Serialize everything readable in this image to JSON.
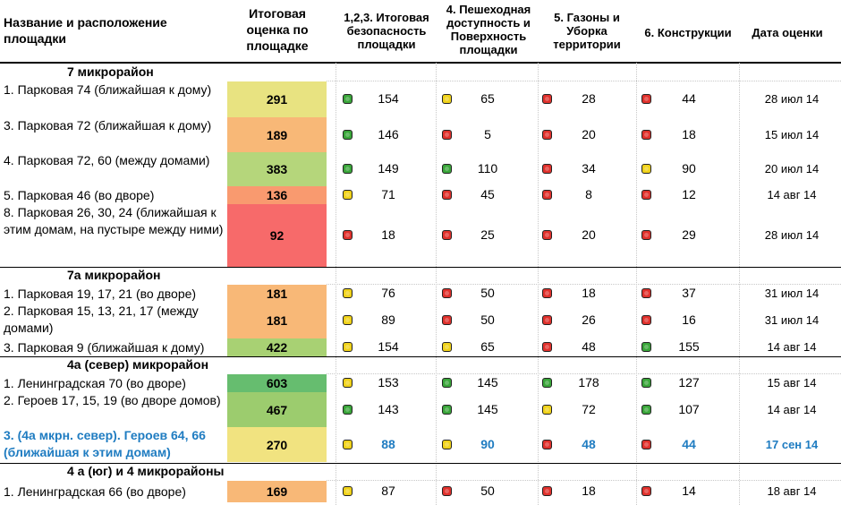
{
  "headers": {
    "name": "Название и расположение площадки",
    "score": "Итоговая оценка по площадке",
    "safety": "1,2,3. Итоговая безопасность площадки",
    "access": "4. Пешеходная доступность и Поверхность площадки",
    "lawns": "5. Газоны и Уборка территории",
    "constructions": "6. Конструкции",
    "date": "Дата оценки"
  },
  "colors": {
    "green": "#3aa63a",
    "yellow": "#f0d219",
    "red": "#e0312c"
  },
  "sections": [
    {
      "title": "7 микрорайон",
      "rows": [
        {
          "name": "1. Парковая 74 (ближайшая к дому)",
          "score": "291",
          "score_color": "#e8e381",
          "safety": {
            "level": "green",
            "value": "154"
          },
          "access": {
            "level": "yellow",
            "value": "65"
          },
          "lawns": {
            "level": "red",
            "value": "28"
          },
          "constructions": {
            "level": "red",
            "value": "44"
          },
          "date": "28 июл 14"
        },
        {
          "name": "3. Парковая 72 (ближайшая к дому)",
          "score": "189",
          "score_color": "#f8b877",
          "safety": {
            "level": "green",
            "value": "146"
          },
          "access": {
            "level": "red",
            "value": "5"
          },
          "lawns": {
            "level": "red",
            "value": "20"
          },
          "constructions": {
            "level": "red",
            "value": "18"
          },
          "date": "15 июл 14"
        },
        {
          "name": "4. Парковая 72, 60 (между домами)",
          "score": "383",
          "score_color": "#b5d67b",
          "safety": {
            "level": "green",
            "value": "149"
          },
          "access": {
            "level": "green",
            "value": "110"
          },
          "lawns": {
            "level": "red",
            "value": "34"
          },
          "constructions": {
            "level": "yellow",
            "value": "90"
          },
          "date": "20 июл 14"
        },
        {
          "name": "5. Парковая 46 (во дворе)",
          "score": "136",
          "score_color": "#f99a6f",
          "safety": {
            "level": "yellow",
            "value": "71"
          },
          "access": {
            "level": "red",
            "value": "45"
          },
          "lawns": {
            "level": "red",
            "value": "8"
          },
          "constructions": {
            "level": "red",
            "value": "12"
          },
          "date": "14 авг 14"
        },
        {
          "name": "8. Парковая 26, 30, 24 (ближайшая к этим домам, на пустыре между ними)",
          "score": "92",
          "score_color": "#f76a6a",
          "safety": {
            "level": "red",
            "value": "18"
          },
          "access": {
            "level": "red",
            "value": "25"
          },
          "lawns": {
            "level": "red",
            "value": "20"
          },
          "constructions": {
            "level": "red",
            "value": "29"
          },
          "date": "28 июл 14"
        }
      ]
    },
    {
      "title": "7а микрорайон",
      "rows": [
        {
          "name": "1. Парковая 19, 17, 21 (во дворе)",
          "score": "181",
          "score_color": "#f8b877",
          "safety": {
            "level": "yellow",
            "value": "76"
          },
          "access": {
            "level": "red",
            "value": "50"
          },
          "lawns": {
            "level": "red",
            "value": "18"
          },
          "constructions": {
            "level": "red",
            "value": "37"
          },
          "date": "31 июл 14"
        },
        {
          "name": "2. Парковая 15, 13, 21, 17 (между домами)",
          "score": "181",
          "score_color": "#f8b877",
          "safety": {
            "level": "yellow",
            "value": "89"
          },
          "access": {
            "level": "red",
            "value": "50"
          },
          "lawns": {
            "level": "red",
            "value": "26"
          },
          "constructions": {
            "level": "red",
            "value": "16"
          },
          "date": "31 июл 14"
        },
        {
          "name": "3. Парковая 9 (ближайшая к дому)",
          "score": "422",
          "score_color": "#a8d173",
          "safety": {
            "level": "yellow",
            "value": "154"
          },
          "access": {
            "level": "yellow",
            "value": "65"
          },
          "lawns": {
            "level": "red",
            "value": "48"
          },
          "constructions": {
            "level": "green",
            "value": "155"
          },
          "date": "14 авг 14"
        }
      ]
    },
    {
      "title": "4а (север) микрорайон",
      "rows": [
        {
          "name": "1. Ленинградская 70 (во дворе)",
          "score": "603",
          "score_color": "#66bd6f",
          "safety": {
            "level": "yellow",
            "value": "153"
          },
          "access": {
            "level": "green",
            "value": "145"
          },
          "lawns": {
            "level": "green",
            "value": "178"
          },
          "constructions": {
            "level": "green",
            "value": "127"
          },
          "date": "15 авг 14"
        },
        {
          "name": "2. Героев 17, 15, 19 (во дворе домов)",
          "score": "467",
          "score_color": "#9ccc6e",
          "safety": {
            "level": "green",
            "value": "143"
          },
          "access": {
            "level": "green",
            "value": "145"
          },
          "lawns": {
            "level": "yellow",
            "value": "72"
          },
          "constructions": {
            "level": "green",
            "value": "107"
          },
          "date": "14 авг 14"
        },
        {
          "name": "3. (4а мкрн. север). Героев 64, 66 (ближайшая к этим домам)",
          "score": "270",
          "score_color": "#f1e380",
          "highlight": true,
          "safety": {
            "level": "yellow",
            "value": "88"
          },
          "access": {
            "level": "yellow",
            "value": "90"
          },
          "lawns": {
            "level": "red",
            "value": "48"
          },
          "constructions": {
            "level": "red",
            "value": "44"
          },
          "date": "17 сен 14"
        }
      ]
    },
    {
      "title": "4 а (юг) и 4 микрорайоны",
      "rows": [
        {
          "name": "1. Ленинградская 66 (во дворе)",
          "score": "169",
          "score_color": "#f8b877",
          "safety": {
            "level": "yellow",
            "value": "87"
          },
          "access": {
            "level": "red",
            "value": "50"
          },
          "lawns": {
            "level": "red",
            "value": "18"
          },
          "constructions": {
            "level": "red",
            "value": "14"
          },
          "date": "18 авг 14"
        }
      ]
    }
  ]
}
